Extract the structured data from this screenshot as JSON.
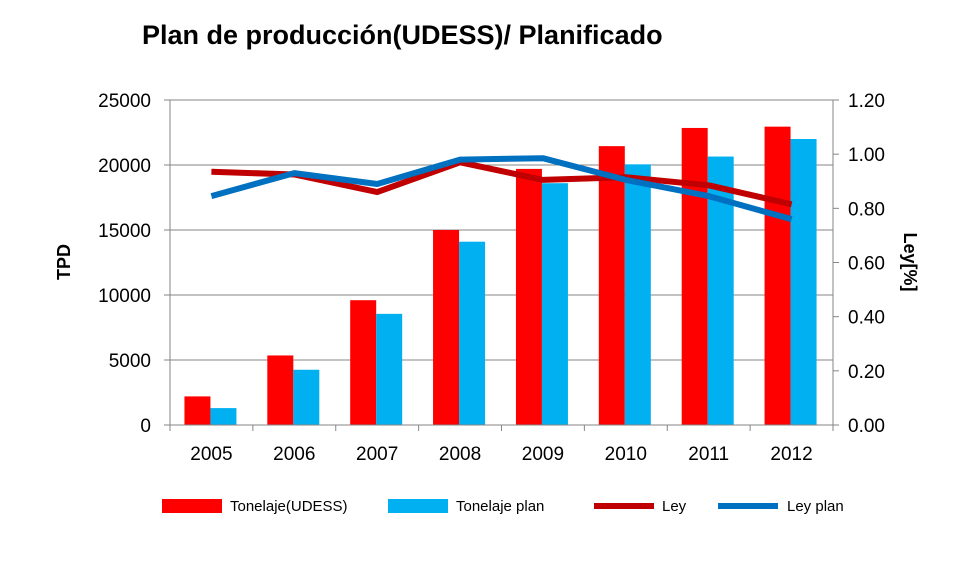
{
  "chart_data": {
    "type": "bar",
    "title": "Plan  de producción(UDESS)/ Planificado",
    "ylabel": "TPD",
    "y2label": "Ley[%]",
    "categories": [
      "2005",
      "2006",
      "2007",
      "2008",
      "2009",
      "2010",
      "2011",
      "2012"
    ],
    "ylim": [
      0,
      25000
    ],
    "y2lim": [
      0,
      1.2
    ],
    "yticks": [
      "0",
      "5000",
      "10000",
      "15000",
      "20000",
      "25000"
    ],
    "y2ticks": [
      "0.00",
      "0.20",
      "0.40",
      "0.60",
      "0.80",
      "1.00",
      "1.20"
    ],
    "grid": true,
    "legend_position": "bottom",
    "series": [
      {
        "name": "Tonelaje(UDESS)",
        "type": "bar",
        "axis": "left",
        "color": "#ff0000",
        "values": [
          2200,
          5350,
          9600,
          15000,
          19700,
          21450,
          22850,
          22950
        ]
      },
      {
        "name": "Tonelaje plan",
        "type": "bar",
        "axis": "left",
        "color": "#00b0f0",
        "values": [
          1300,
          4250,
          8550,
          14100,
          18600,
          20050,
          20650,
          22000
        ]
      },
      {
        "name": "Ley",
        "type": "line",
        "axis": "right",
        "color": "#c00000",
        "values": [
          0.935,
          0.925,
          0.86,
          0.97,
          0.905,
          0.915,
          0.885,
          0.815
        ]
      },
      {
        "name": "Ley plan",
        "type": "line",
        "axis": "right",
        "color": "#0070c0",
        "values": [
          0.845,
          0.93,
          0.89,
          0.98,
          0.985,
          0.905,
          0.845,
          0.76
        ]
      }
    ]
  }
}
